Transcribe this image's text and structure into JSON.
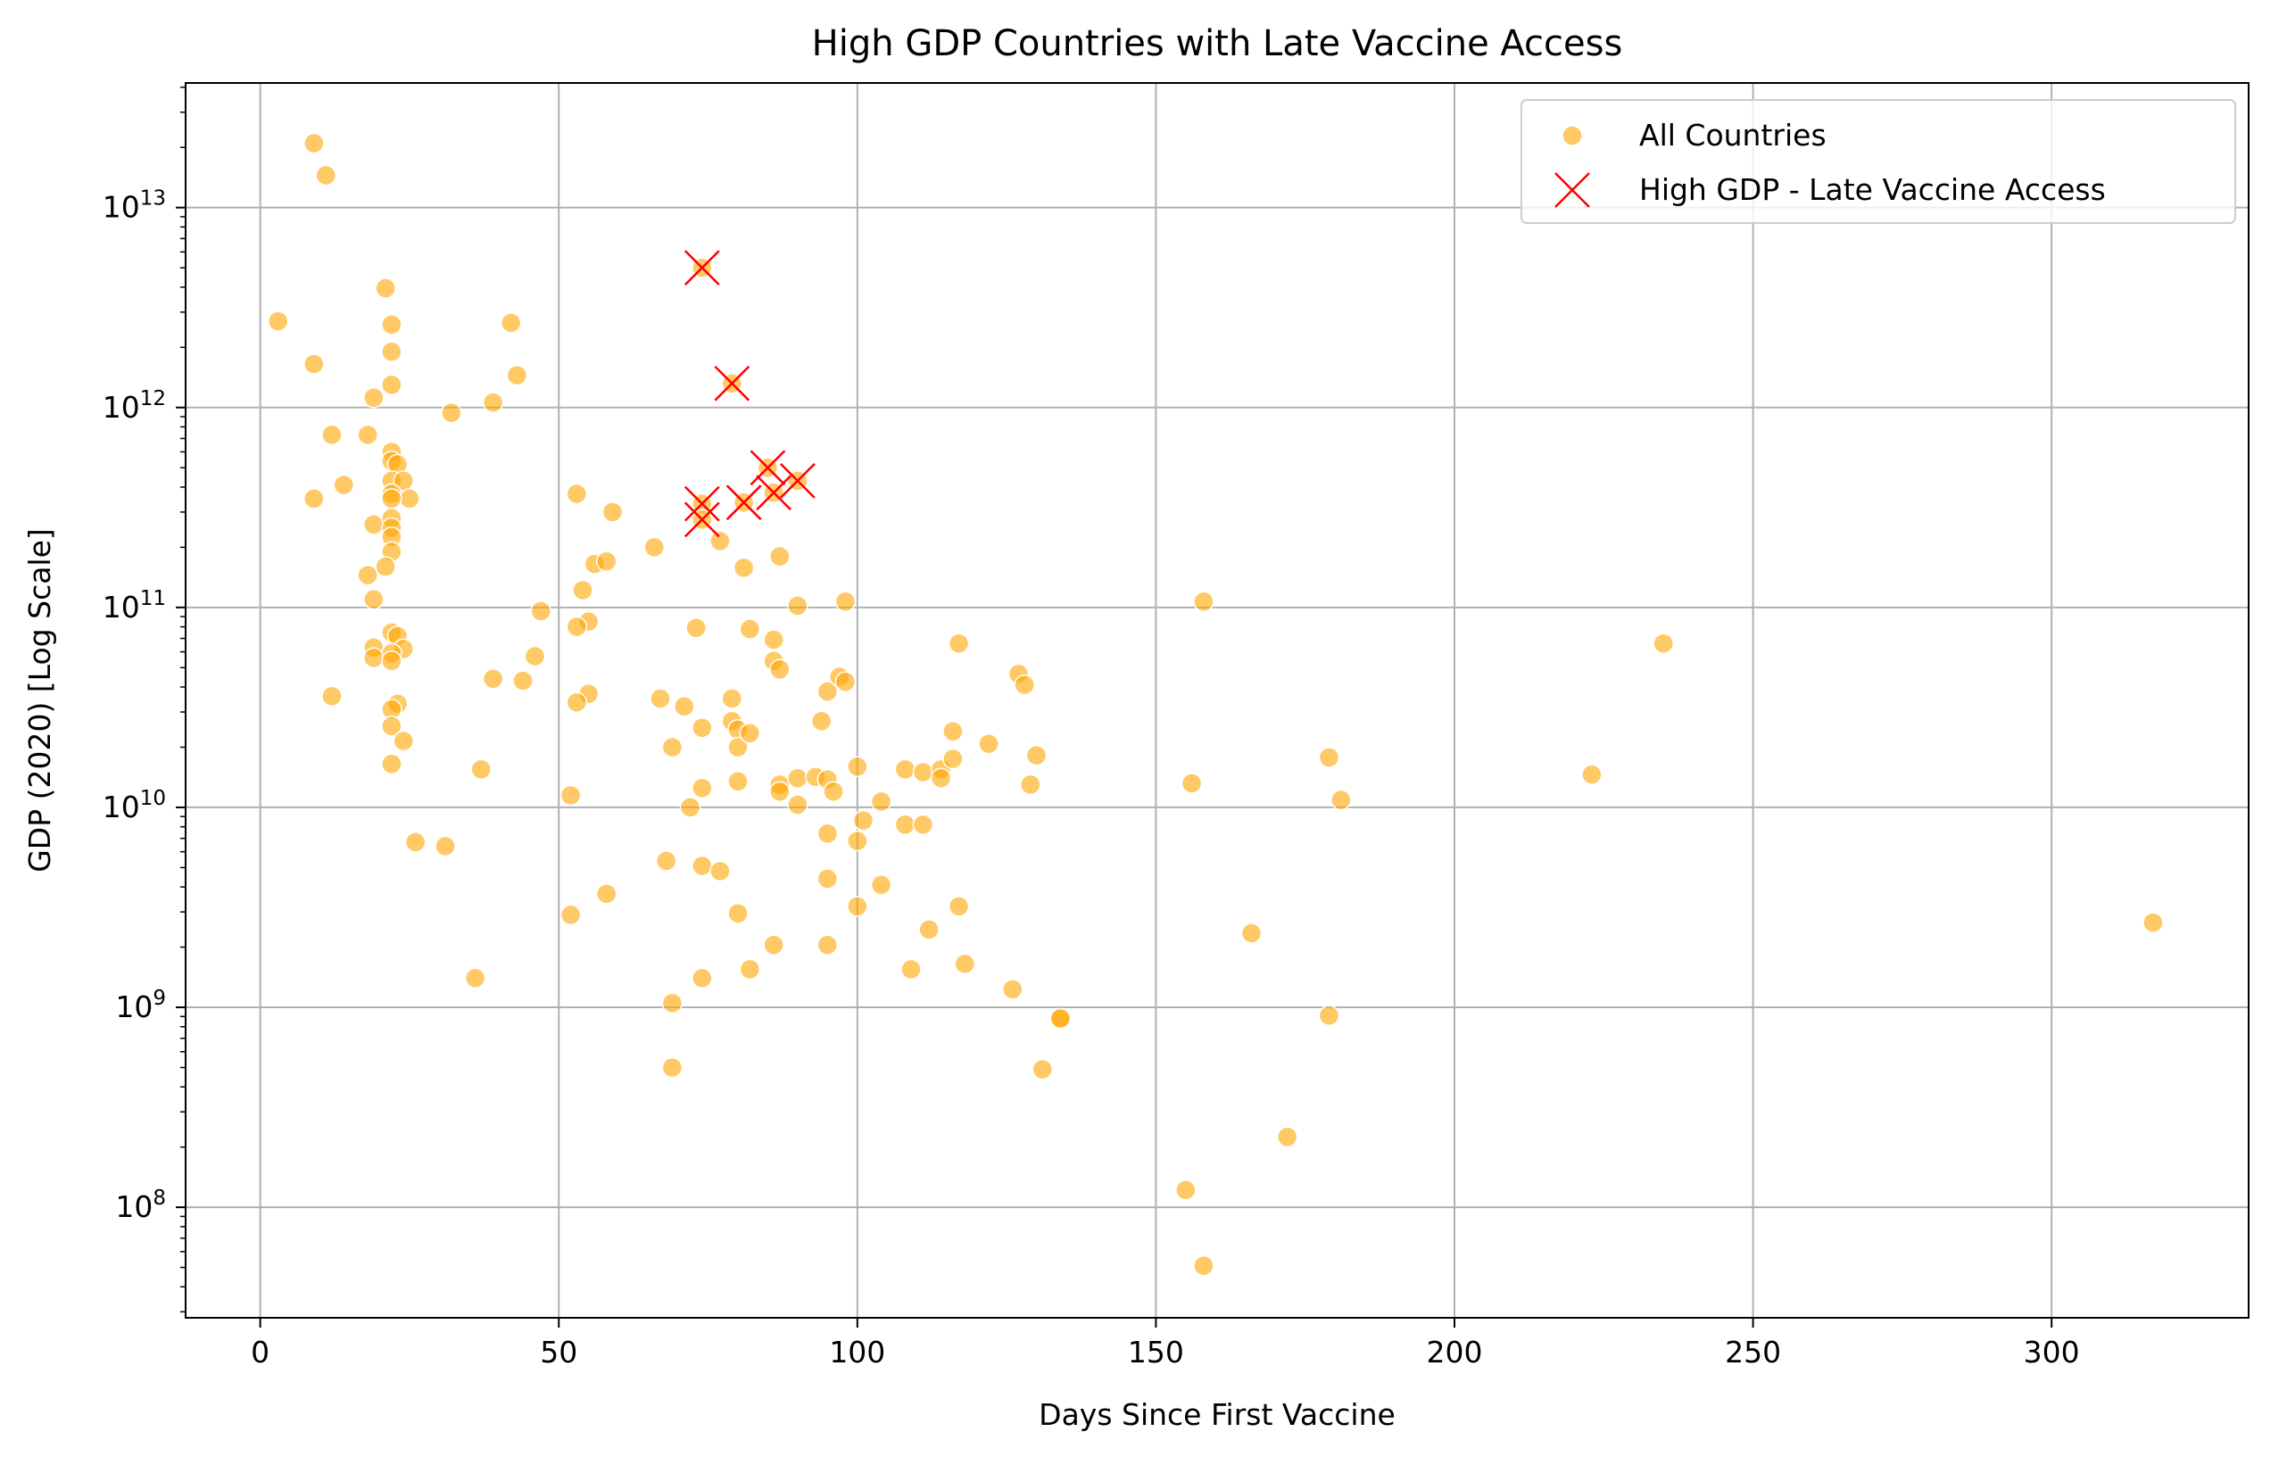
{
  "chart_data": {
    "type": "scatter",
    "title": "High GDP Countries with Late Vaccine Access",
    "xlabel": "Days Since First Vaccine",
    "ylabel": "GDP (2020) [Log Scale]",
    "x_scale": "linear",
    "y_scale": "log",
    "xlim": [
      -12.5,
      333
    ],
    "ylim": [
      28000000.0,
      42000000000000.0
    ],
    "x_ticks": [
      0,
      50,
      100,
      150,
      200,
      250,
      300
    ],
    "y_ticks": [
      100000000.0,
      1000000000.0,
      10000000000.0,
      100000000000.0,
      1000000000000.0,
      10000000000000.0
    ],
    "y_tick_labels": [
      {
        "base": "10",
        "exp": "8"
      },
      {
        "base": "10",
        "exp": "9"
      },
      {
        "base": "10",
        "exp": "10"
      },
      {
        "base": "10",
        "exp": "11"
      },
      {
        "base": "10",
        "exp": "12"
      },
      {
        "base": "10",
        "exp": "13"
      }
    ],
    "grid": true,
    "legend_position": "top-right",
    "colors": {
      "all": "#ffa500",
      "highlight": "#ff0000",
      "grid": "#b0b0b0"
    },
    "series": [
      {
        "name": "All Countries",
        "marker": "circle",
        "color": "#ffa500",
        "points": [
          [
            9,
            21000000000000.0
          ],
          [
            11,
            14500000000000.0
          ],
          [
            3,
            2700000000000.0
          ],
          [
            9,
            1650000000000.0
          ],
          [
            12,
            730000000000.0
          ],
          [
            9,
            350000000000.0
          ],
          [
            14,
            410000000000.0
          ],
          [
            12,
            36000000000.0
          ],
          [
            21,
            3950000000000.0
          ],
          [
            22,
            2600000000000.0
          ],
          [
            22,
            1900000000000.0
          ],
          [
            22,
            1300000000000.0
          ],
          [
            19,
            1120000000000.0
          ],
          [
            18,
            730000000000.0
          ],
          [
            22,
            600000000000.0
          ],
          [
            22,
            540000000000.0
          ],
          [
            23,
            520000000000.0
          ],
          [
            22,
            430000000000.0
          ],
          [
            24,
            430000000000.0
          ],
          [
            22,
            370000000000.0
          ],
          [
            25,
            350000000000.0
          ],
          [
            22,
            350000000000.0
          ],
          [
            19,
            260000000000.0
          ],
          [
            22,
            280000000000.0
          ],
          [
            22,
            250000000000.0
          ],
          [
            22,
            225000000000.0
          ],
          [
            22,
            190000000000.0
          ],
          [
            21,
            160000000000.0
          ],
          [
            18,
            145000000000.0
          ],
          [
            19,
            110000000000.0
          ],
          [
            22,
            75000000000.0
          ],
          [
            23,
            72000000000.0
          ],
          [
            19,
            63000000000.0
          ],
          [
            24,
            62000000000.0
          ],
          [
            22,
            59000000000.0
          ],
          [
            19,
            56000000000.0
          ],
          [
            22,
            54000000000.0
          ],
          [
            23,
            33000000000.0
          ],
          [
            22,
            31000000000.0
          ],
          [
            22,
            25500000000.0
          ],
          [
            24,
            21500000000.0
          ],
          [
            22,
            16500000000.0
          ],
          [
            26,
            6700000000.0
          ],
          [
            31,
            6400000000.0
          ],
          [
            32,
            940000000000.0
          ],
          [
            39,
            1060000000000.0
          ],
          [
            42,
            2650000000000.0
          ],
          [
            43,
            1450000000000.0
          ],
          [
            37,
            15500000000.0
          ],
          [
            36,
            1400000000.0
          ],
          [
            39,
            44000000000.0
          ],
          [
            44,
            43000000000.0
          ],
          [
            46,
            57000000000.0
          ],
          [
            47,
            96000000000.0
          ],
          [
            53,
            370000000000.0
          ],
          [
            54,
            122000000000.0
          ],
          [
            55,
            85000000000.0
          ],
          [
            53,
            80000000000.0
          ],
          [
            56,
            165000000000.0
          ],
          [
            58,
            170000000000.0
          ],
          [
            59,
            300000000000.0
          ],
          [
            55,
            37000000000.0
          ],
          [
            53,
            33500000000.0
          ],
          [
            52,
            11500000000.0
          ],
          [
            52,
            2900000000.0
          ],
          [
            58,
            3700000000.0
          ],
          [
            66,
            200000000000.0
          ],
          [
            67,
            35000000000.0
          ],
          [
            69,
            20000000000.0
          ],
          [
            68,
            5400000000.0
          ],
          [
            69,
            1050000000.0
          ],
          [
            69,
            500000000.0
          ],
          [
            71,
            32000000000.0
          ],
          [
            72,
            10000000000.0
          ],
          [
            73,
            79000000000.0
          ],
          [
            74,
            25000000000.0
          ],
          [
            74,
            12500000000.0
          ],
          [
            74,
            5100000000.0
          ],
          [
            74,
            1400000000.0
          ],
          [
            77,
            215000000000.0
          ],
          [
            77,
            4800000000.0
          ],
          [
            79,
            35000000000.0
          ],
          [
            79,
            27000000000.0
          ],
          [
            80,
            24500000000.0
          ],
          [
            80,
            20000000000.0
          ],
          [
            80,
            13500000000.0
          ],
          [
            80,
            2950000000.0
          ],
          [
            81,
            158000000000.0
          ],
          [
            82,
            78000000000.0
          ],
          [
            82,
            23500000000.0
          ],
          [
            82,
            1550000000.0
          ],
          [
            86,
            69000000000.0
          ],
          [
            86,
            54000000000.0
          ],
          [
            87,
            49000000000.0
          ],
          [
            87,
            180000000000.0
          ],
          [
            87,
            13000000000.0
          ],
          [
            87,
            12000000000.0
          ],
          [
            86,
            2050000000.0
          ],
          [
            90,
            102000000000.0
          ],
          [
            90,
            14000000000.0
          ],
          [
            90,
            10300000000.0
          ],
          [
            93,
            14200000000.0
          ],
          [
            94,
            27000000000.0
          ],
          [
            95,
            38000000000.0
          ],
          [
            95,
            13800000000.0
          ],
          [
            95,
            7400000000.0
          ],
          [
            95,
            4400000000.0
          ],
          [
            95,
            2050000000.0
          ],
          [
            96,
            12000000000.0
          ],
          [
            97,
            45000000000.0
          ],
          [
            98,
            42500000000.0
          ],
          [
            98,
            107000000000.0
          ],
          [
            100,
            16000000000.0
          ],
          [
            100,
            6800000000.0
          ],
          [
            100,
            3200000000.0
          ],
          [
            101,
            8600000000.0
          ],
          [
            104,
            10700000000.0
          ],
          [
            104,
            4100000000.0
          ],
          [
            108,
            15500000000.0
          ],
          [
            108,
            8200000000.0
          ],
          [
            109,
            1550000000.0
          ],
          [
            111,
            15000000000.0
          ],
          [
            111,
            8200000000.0
          ],
          [
            112,
            2450000000.0
          ],
          [
            114,
            15500000000.0
          ],
          [
            114,
            14000000000.0
          ],
          [
            116,
            24000000000.0
          ],
          [
            116,
            17500000000.0
          ],
          [
            117,
            66000000000.0
          ],
          [
            117,
            3200000000.0
          ],
          [
            118,
            1650000000.0
          ],
          [
            122,
            20800000000.0
          ],
          [
            126,
            1230000000.0
          ],
          [
            127,
            46500000000.0
          ],
          [
            128,
            41000000000.0
          ],
          [
            129,
            13000000000.0
          ],
          [
            130,
            18200000000.0
          ],
          [
            131,
            490000000.0
          ],
          [
            134,
            880000000.0
          ],
          [
            134,
            880000000.0
          ],
          [
            155,
            122000000.0
          ],
          [
            156,
            13200000000.0
          ],
          [
            158,
            107000000000.0
          ],
          [
            158,
            51000000.0
          ],
          [
            166,
            2350000000.0
          ],
          [
            172,
            225000000.0
          ],
          [
            179,
            17800000000.0
          ],
          [
            179,
            910000000.0
          ],
          [
            181,
            10900000000.0
          ],
          [
            223,
            14600000000.0
          ],
          [
            235,
            66000000000.0
          ],
          [
            317,
            2650000000.0
          ],
          [
            74,
            5000000000000.0
          ],
          [
            79,
            1320000000000.0
          ],
          [
            85,
            500000000000.0
          ],
          [
            90,
            430000000000.0
          ],
          [
            74,
            330000000000.0
          ],
          [
            74,
            275000000000.0
          ],
          [
            81,
            335000000000.0
          ],
          [
            86,
            375000000000.0
          ]
        ]
      },
      {
        "name": "High GDP - Late Vaccine Access",
        "marker": "x",
        "color": "#ff0000",
        "points": [
          [
            74,
            5000000000000.0
          ],
          [
            79,
            1320000000000.0
          ],
          [
            85,
            500000000000.0
          ],
          [
            90,
            430000000000.0
          ],
          [
            74,
            330000000000.0
          ],
          [
            74,
            275000000000.0
          ],
          [
            81,
            335000000000.0
          ],
          [
            86,
            375000000000.0
          ]
        ]
      }
    ]
  }
}
